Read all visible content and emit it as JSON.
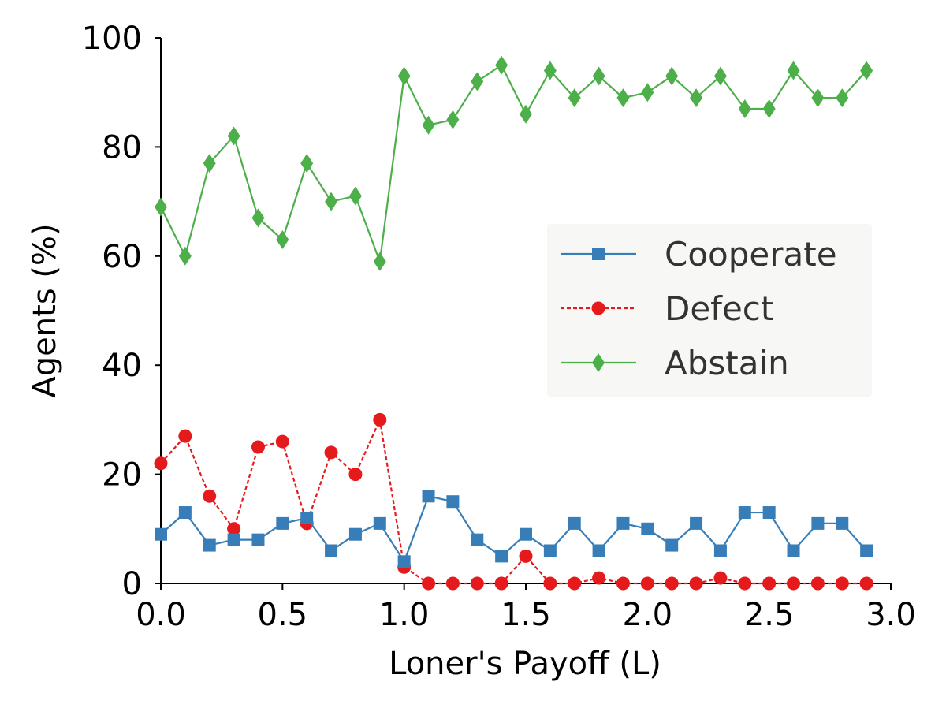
{
  "chart_data": {
    "type": "line",
    "xlabel": "Loner's Payoff (L)",
    "ylabel": "Agents (%)",
    "xlim": [
      0.0,
      3.0
    ],
    "ylim": [
      0,
      100
    ],
    "xticks": [
      "0.0",
      "0.5",
      "1.0",
      "1.5",
      "2.0",
      "2.5",
      "3.0"
    ],
    "yticks": [
      "0",
      "20",
      "40",
      "60",
      "80",
      "100"
    ],
    "grid": false,
    "legend_position": "center-right",
    "x": [
      0.0,
      0.1,
      0.2,
      0.3,
      0.4,
      0.5,
      0.6,
      0.7,
      0.8,
      0.9,
      1.0,
      1.1,
      1.2,
      1.3,
      1.4,
      1.5,
      1.6,
      1.7,
      1.8,
      1.9,
      2.0,
      2.1,
      2.2,
      2.3,
      2.4,
      2.5,
      2.6,
      2.7,
      2.8,
      2.9
    ],
    "series": [
      {
        "name": "Cooperate",
        "color": "#377eb8",
        "marker": "square",
        "line_style": "solid",
        "values": [
          9,
          13,
          7,
          8,
          8,
          11,
          12,
          6,
          9,
          11,
          4,
          16,
          15,
          8,
          5,
          9,
          6,
          11,
          6,
          11,
          10,
          7,
          11,
          6,
          13,
          13,
          6,
          11,
          11,
          6
        ]
      },
      {
        "name": "Defect",
        "color": "#e41a1c",
        "marker": "circle",
        "line_style": "dashed",
        "values": [
          22,
          27,
          16,
          10,
          25,
          26,
          11,
          24,
          20,
          30,
          3,
          0,
          0,
          0,
          0,
          5,
          0,
          0,
          1,
          0,
          0,
          0,
          0,
          1,
          0,
          0,
          0,
          0,
          0,
          0
        ]
      },
      {
        "name": "Abstain",
        "color": "#4daf4a",
        "marker": "diamond",
        "line_style": "solid",
        "values": [
          69,
          60,
          77,
          82,
          67,
          63,
          77,
          70,
          71,
          59,
          93,
          84,
          85,
          92,
          95,
          86,
          94,
          89,
          93,
          89,
          90,
          93,
          89,
          93,
          87,
          87,
          94,
          89,
          89,
          94
        ]
      }
    ]
  }
}
